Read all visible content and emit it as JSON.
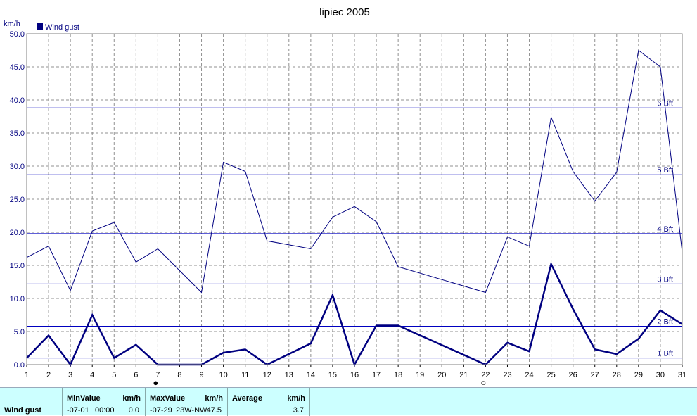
{
  "chart_data": {
    "type": "line",
    "title": "lipiec 2005",
    "ylabel": "km/h",
    "ylim": [
      0,
      50
    ],
    "y_ticks": [
      "0.0",
      "5.0",
      "10.0",
      "15.0",
      "20.0",
      "25.0",
      "30.0",
      "35.0",
      "40.0",
      "45.0",
      "50.0"
    ],
    "x": [
      1,
      2,
      3,
      4,
      5,
      6,
      7,
      8,
      9,
      10,
      11,
      12,
      13,
      14,
      15,
      16,
      17,
      18,
      19,
      20,
      21,
      22,
      23,
      24,
      25,
      26,
      27,
      28,
      29,
      30,
      31
    ],
    "xlim": [
      1,
      31
    ],
    "legend": {
      "label": "Wind gust",
      "placement": "top-left"
    },
    "grid": true,
    "series": [
      {
        "role": "max",
        "color": "#000080",
        "values": [
          16.2,
          17.9,
          11.2,
          20.2,
          21.5,
          15.5,
          17.5,
          null,
          10.9,
          30.6,
          29.2,
          18.7,
          null,
          17.5,
          22.3,
          23.9,
          21.6,
          14.8,
          null,
          null,
          null,
          10.9,
          19.3,
          17.9,
          37.4,
          29.2,
          24.7,
          29.1,
          47.5,
          45.0,
          17.0
        ]
      },
      {
        "role": "average",
        "color": "#000080",
        "values": [
          1.0,
          4.4,
          0.0,
          7.5,
          1.0,
          3.0,
          0.0,
          null,
          0.0,
          1.8,
          2.3,
          0.0,
          null,
          3.2,
          10.5,
          0.0,
          5.9,
          5.9,
          null,
          null,
          null,
          0.0,
          3.3,
          2.0,
          15.2,
          8.4,
          2.3,
          1.6,
          3.9,
          8.2,
          6.1
        ]
      }
    ],
    "beaufort": [
      {
        "label": "1 Bft",
        "value": 1.0
      },
      {
        "label": "2 Bft",
        "value": 5.8
      },
      {
        "label": "3 Bft",
        "value": 12.2
      },
      {
        "label": "4 Bft",
        "value": 19.8
      },
      {
        "label": "5 Bft",
        "value": 28.7
      },
      {
        "label": "6 Bft",
        "value": 38.8
      }
    ],
    "moon_phases": [
      {
        "day": 6.9,
        "symbol": "●"
      },
      {
        "day": 21.9,
        "symbol": "○"
      }
    ]
  },
  "stats": {
    "row_label": "Wind gust",
    "min_header": "MinValue",
    "min_unit": "km/h",
    "min_date": "-07-01",
    "min_time": "00:00",
    "min_value": "0.0",
    "max_header": "MaxValue",
    "max_unit": "km/h",
    "max_date": "-07-29",
    "max_detail": "23W-NW",
    "max_value": "47.5",
    "avg_header": "Average",
    "avg_unit": "km/h",
    "avg_value": "3.7"
  }
}
